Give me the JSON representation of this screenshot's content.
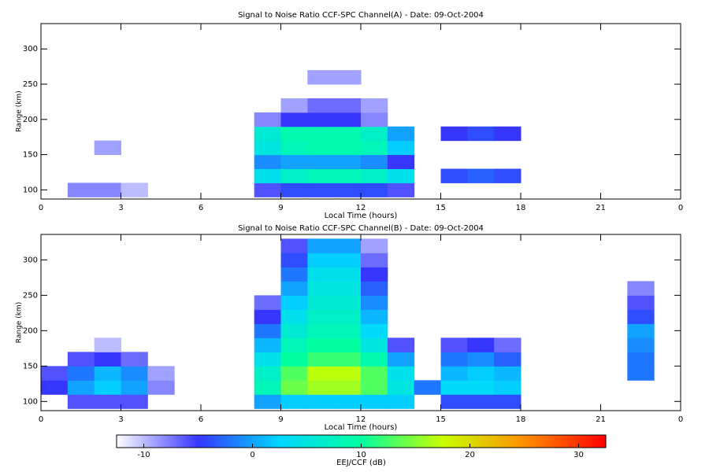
{
  "chart_data": [
    {
      "type": "heatmap",
      "title": "Signal to Noise Ratio CCF-SPC Channel(A) - Date: 09-Oct-2004",
      "xlabel": "Local Time (hours)",
      "ylabel": "Range (km)",
      "x": [
        0,
        1,
        2,
        3,
        4,
        5,
        6,
        7,
        8,
        9,
        10,
        11,
        12,
        13,
        14,
        15,
        16,
        17,
        18,
        19,
        20,
        21,
        22,
        23,
        24
      ],
      "y": [
        90,
        110,
        130,
        150,
        170,
        190,
        210,
        230,
        250,
        270,
        290,
        310,
        330
      ],
      "z": [
        [
          null,
          -8,
          -8,
          -10,
          null,
          null,
          null,
          null,
          -6,
          -4,
          -4,
          -4,
          -4,
          -6,
          null,
          null,
          null,
          null,
          null,
          null,
          null,
          null,
          null,
          null
        ],
        [
          null,
          null,
          null,
          null,
          null,
          null,
          null,
          null,
          4,
          7,
          8,
          8,
          7,
          4,
          null,
          -4,
          -3,
          -4,
          null,
          null,
          null,
          null,
          null,
          null
        ],
        [
          null,
          null,
          null,
          null,
          null,
          null,
          null,
          null,
          -1,
          0,
          0,
          0,
          -1,
          -5,
          null,
          null,
          null,
          null,
          null,
          null,
          null,
          null,
          null,
          null
        ],
        [
          null,
          null,
          -9,
          null,
          null,
          null,
          null,
          null,
          5,
          8,
          9,
          9,
          8,
          2,
          null,
          null,
          null,
          null,
          null,
          null,
          null,
          null,
          null,
          null
        ],
        [
          null,
          null,
          null,
          null,
          null,
          null,
          null,
          null,
          6,
          9,
          9,
          9,
          7,
          0,
          null,
          -5,
          -4,
          -5,
          null,
          null,
          null,
          null,
          null,
          null
        ],
        [
          null,
          null,
          null,
          null,
          null,
          null,
          null,
          null,
          -8,
          -5,
          -5,
          -5,
          -8,
          null,
          null,
          null,
          null,
          null,
          null,
          null,
          null,
          null,
          null,
          null
        ],
        [
          null,
          null,
          null,
          null,
          null,
          null,
          null,
          null,
          null,
          -9,
          -7,
          -7,
          -9,
          null,
          null,
          null,
          null,
          null,
          null,
          null,
          null,
          null,
          null,
          null
        ],
        [
          null,
          null,
          null,
          null,
          null,
          null,
          null,
          null,
          null,
          null,
          null,
          null,
          null,
          null,
          null,
          null,
          null,
          null,
          null,
          null,
          null,
          null,
          null,
          null
        ],
        [
          null,
          null,
          null,
          null,
          null,
          null,
          null,
          null,
          null,
          null,
          -9,
          -9,
          null,
          null,
          null,
          null,
          null,
          null,
          null,
          null,
          null,
          null,
          null,
          null
        ],
        [
          null,
          null,
          null,
          null,
          null,
          null,
          null,
          null,
          null,
          null,
          null,
          null,
          null,
          null,
          null,
          null,
          null,
          null,
          null,
          null,
          null,
          null,
          null,
          null
        ],
        [
          null,
          null,
          null,
          null,
          null,
          null,
          null,
          null,
          null,
          null,
          null,
          null,
          null,
          null,
          null,
          null,
          null,
          null,
          null,
          null,
          null,
          null,
          null,
          null
        ],
        [
          null,
          null,
          null,
          null,
          null,
          null,
          null,
          null,
          null,
          null,
          null,
          null,
          null,
          null,
          null,
          null,
          null,
          null,
          null,
          null,
          null,
          null,
          null,
          null
        ]
      ],
      "xlim": [
        0,
        24
      ],
      "xticks": [
        0,
        3,
        6,
        9,
        12,
        15,
        18,
        21,
        {
          "value": 24,
          "label": "0"
        }
      ],
      "ylim": [
        87,
        336
      ],
      "yticks": [
        100,
        150,
        200,
        250,
        300
      ]
    },
    {
      "type": "heatmap",
      "title": "Signal to Noise Ratio CCF-SPC Channel(B) - Date: 09-Oct-2004",
      "xlabel": "Local Time (hours)",
      "ylabel": "Range (km)",
      "x": [
        0,
        1,
        2,
        3,
        4,
        5,
        6,
        7,
        8,
        9,
        10,
        11,
        12,
        13,
        14,
        15,
        16,
        17,
        18,
        19,
        20,
        21,
        22,
        23,
        24
      ],
      "y": [
        90,
        110,
        130,
        150,
        170,
        190,
        210,
        230,
        250,
        270,
        290,
        310,
        330
      ],
      "z": [
        [
          null,
          -6,
          -6,
          -6,
          null,
          null,
          null,
          null,
          0,
          2,
          2,
          2,
          2,
          2,
          null,
          -4,
          -4,
          -4,
          null,
          null,
          null,
          null,
          null,
          null
        ],
        [
          -5,
          0,
          2,
          0,
          -8,
          null,
          null,
          null,
          8,
          14,
          16,
          16,
          13,
          5,
          -2,
          3,
          3,
          2,
          null,
          null,
          null,
          null,
          null,
          null
        ],
        [
          -6,
          -2,
          1,
          -1,
          -9,
          null,
          null,
          null,
          7,
          13,
          17,
          17,
          13,
          4,
          null,
          1,
          2,
          1,
          null,
          null,
          null,
          null,
          -2,
          null
        ],
        [
          null,
          -6,
          -5,
          -7,
          null,
          null,
          null,
          null,
          4,
          10,
          12,
          12,
          9,
          0,
          null,
          -2,
          -1,
          -3,
          null,
          null,
          null,
          null,
          -2,
          null
        ],
        [
          null,
          null,
          -10,
          null,
          null,
          null,
          null,
          null,
          1,
          8,
          10,
          10,
          5,
          -6,
          null,
          -6,
          -5,
          -7,
          null,
          null,
          null,
          null,
          -1,
          null
        ],
        [
          null,
          null,
          null,
          null,
          null,
          null,
          null,
          null,
          -2,
          6,
          8,
          8,
          3,
          null,
          null,
          null,
          null,
          null,
          null,
          null,
          null,
          null,
          0,
          null
        ],
        [
          null,
          null,
          null,
          null,
          null,
          null,
          null,
          null,
          -5,
          4,
          7,
          7,
          1,
          null,
          null,
          null,
          null,
          null,
          null,
          null,
          null,
          null,
          -4,
          null
        ],
        [
          null,
          null,
          null,
          null,
          null,
          null,
          null,
          null,
          -7,
          2,
          6,
          6,
          -1,
          null,
          null,
          null,
          null,
          null,
          null,
          null,
          null,
          null,
          -6,
          null
        ],
        [
          null,
          null,
          null,
          null,
          null,
          null,
          null,
          null,
          null,
          0,
          5,
          5,
          -3,
          null,
          null,
          null,
          null,
          null,
          null,
          null,
          null,
          null,
          -8,
          null
        ],
        [
          null,
          null,
          null,
          null,
          null,
          null,
          null,
          null,
          null,
          -2,
          4,
          4,
          -5,
          null,
          null,
          null,
          null,
          null,
          null,
          null,
          null,
          null,
          null,
          null
        ],
        [
          null,
          null,
          null,
          null,
          null,
          null,
          null,
          null,
          null,
          -4,
          2,
          2,
          -7,
          null,
          null,
          null,
          null,
          null,
          null,
          null,
          null,
          null,
          null,
          null
        ],
        [
          null,
          null,
          null,
          null,
          null,
          null,
          null,
          null,
          null,
          -6,
          0,
          0,
          -9,
          null,
          null,
          null,
          null,
          null,
          null,
          null,
          null,
          null,
          null,
          null
        ]
      ],
      "xlim": [
        0,
        24
      ],
      "xticks": [
        0,
        3,
        6,
        9,
        12,
        15,
        18,
        21,
        {
          "value": 24,
          "label": "0"
        }
      ],
      "ylim": [
        87,
        336
      ],
      "yticks": [
        100,
        150,
        200,
        250,
        300
      ]
    }
  ],
  "colorbar": {
    "label": "EEJ/CCF (dB)",
    "zlim": [
      -12.5,
      32.5
    ],
    "ticks": [
      -10,
      0,
      10,
      20,
      30
    ],
    "colormap": [
      "#ffffff",
      "#3636ff",
      "#00d8ff",
      "#00ffa0",
      "#c8ff00",
      "#ff9000",
      "#ff0000"
    ]
  }
}
